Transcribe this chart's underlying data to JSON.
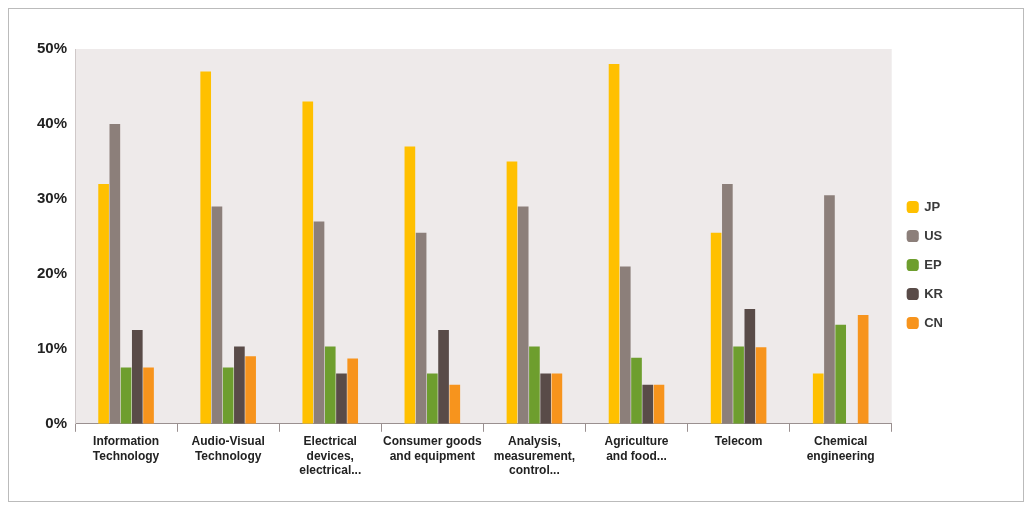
{
  "chart_data": {
    "type": "bar",
    "categories": [
      "Information Technology",
      "Audio-Visual Technology",
      "Electrical devices, electrical...",
      "Consumer goods and equipment",
      "Analysis, measurement, control...",
      "Agriculture and food...",
      "Telecom",
      "Chemical engineering"
    ],
    "series": [
      {
        "name": "JP",
        "color": "#ffc000",
        "values": [
          32,
          47,
          43,
          37,
          35,
          48,
          25.5,
          6.7
        ]
      },
      {
        "name": "US",
        "color": "#8c7f7a",
        "values": [
          40,
          29,
          27,
          25.5,
          29,
          21,
          32,
          30.5
        ]
      },
      {
        "name": "EP",
        "color": "#6e9e2e",
        "values": [
          7.5,
          7.5,
          10.3,
          6.7,
          10.3,
          8.8,
          10.3,
          13.2
        ]
      },
      {
        "name": "KR",
        "color": "#594b48",
        "values": [
          12.5,
          10.3,
          6.7,
          12.5,
          6.7,
          5.2,
          15.3,
          null
        ]
      },
      {
        "name": "CN",
        "color": "#f7941d",
        "values": [
          7.5,
          9,
          8.7,
          5.2,
          6.7,
          5.2,
          10.2,
          14.5
        ]
      }
    ],
    "ylim": [
      0,
      50
    ],
    "yticks": [
      {
        "value": 0,
        "label": "0%"
      },
      {
        "value": 10,
        "label": "10%"
      },
      {
        "value": 20,
        "label": "20%"
      },
      {
        "value": 30,
        "label": "30%"
      },
      {
        "value": 40,
        "label": "40%"
      },
      {
        "value": 50,
        "label": "50%"
      }
    ],
    "grid": false,
    "legend": "right"
  }
}
